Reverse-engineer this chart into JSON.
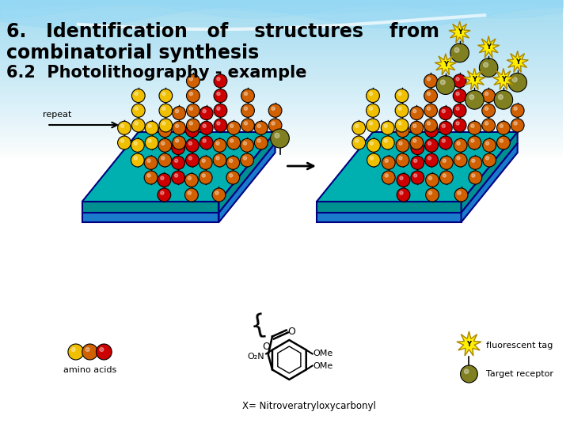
{
  "title_line1": "6.   Identification   of    structures    from",
  "title_line2": "combinatorial synthesis",
  "title_line3": "6.2  Photolithography - example",
  "bg_color": "#f0f8ff",
  "title_color": "#000000",
  "title_fontsize": 17,
  "subtitle_fontsize": 15,
  "repeat_label": "repeat",
  "amino_label": "amino acids",
  "xgroup_label": "X= Nitroveratryloxycarbonyl",
  "fluor_label": "fluorescent tag",
  "target_label": "Target receptor",
  "platform_top_color": "#00b0b0",
  "platform_front_color": "#009090",
  "platform_side_color": "#007070",
  "platform_base_color": "#1a7acc",
  "platform_edge_color": "#000080",
  "bead_yellow": "#f0c000",
  "bead_orange": "#d06000",
  "bead_red": "#cc0000",
  "bead_olive": "#808020",
  "star_color": "#ffee00",
  "star_edge": "#aa8800",
  "wave_color1": "#70c8e8",
  "wave_color2": "#90d8f8"
}
